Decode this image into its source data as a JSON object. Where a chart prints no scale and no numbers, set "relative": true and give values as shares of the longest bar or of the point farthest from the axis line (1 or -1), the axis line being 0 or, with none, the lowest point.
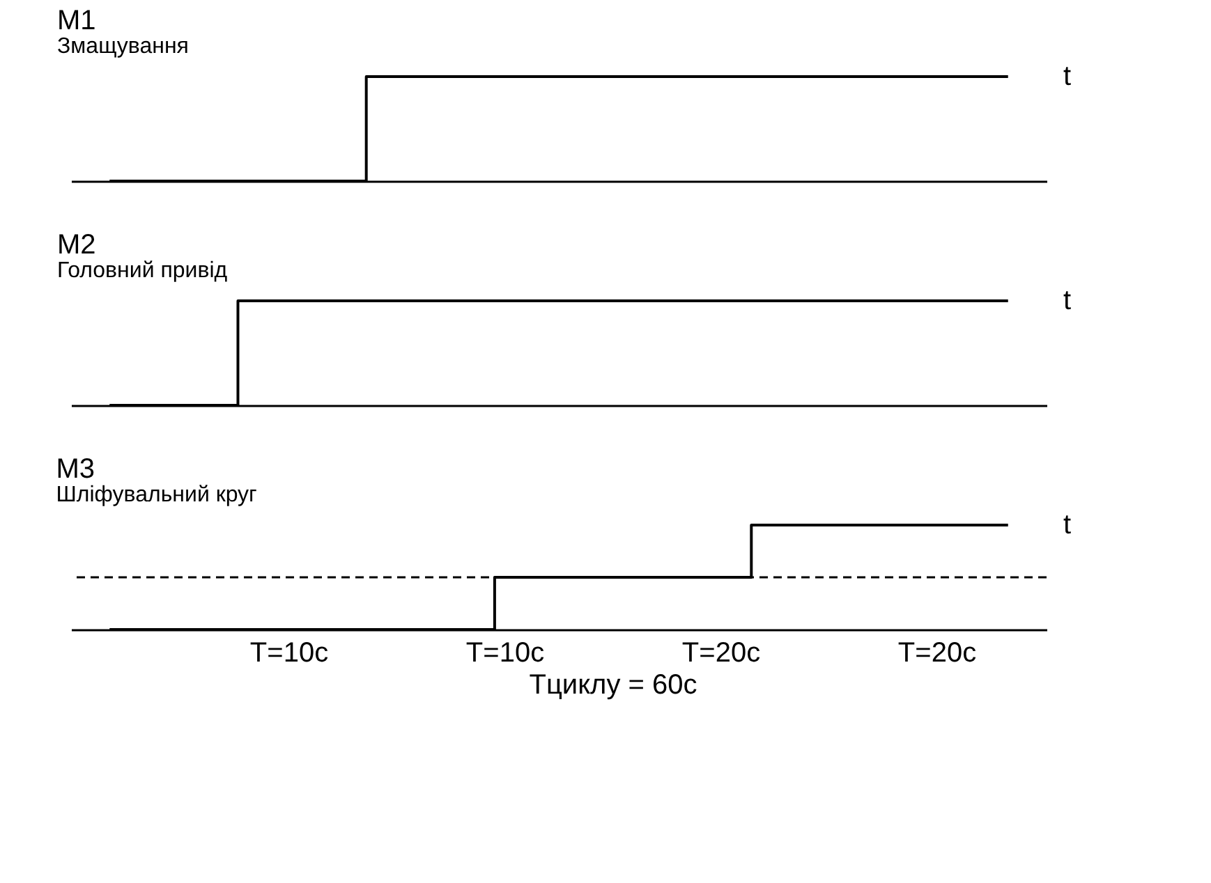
{
  "chart_data": [
    {
      "type": "step",
      "ylabel": "M1",
      "title": "Змащування",
      "xlabel": "t",
      "relative": true,
      "tick_labels": false,
      "categories": [
        null,
        null,
        null,
        null,
        null,
        null,
        null,
        null
      ],
      "series": [
        {
          "color": "#000000",
          "values": [
            0,
            0,
            1,
            1,
            1,
            1,
            1,
            1
          ]
        }
      ]
    },
    {
      "type": "step",
      "ylabel": "M2",
      "title": "Головний привід",
      "xlabel": "t",
      "relative": true,
      "tick_labels": false,
      "categories": [
        null,
        null,
        null,
        null,
        null,
        null,
        null,
        null
      ],
      "series": [
        {
          "color": "#000000",
          "values": [
            0,
            1,
            1,
            1,
            1,
            1,
            1,
            1
          ]
        }
      ]
    },
    {
      "type": "step",
      "ylabel": "M3",
      "title": "Шліфувальний круг",
      "xlabel": "t",
      "relative": true,
      "tick_labels": false,
      "categories": [
        null,
        null,
        null,
        null,
        null,
        null,
        null,
        null
      ],
      "series": [
        {
          "color": "#000000",
          "values": [
            0,
            0,
            0,
            0.5,
            0.5,
            1,
            1,
            1
          ]
        }
      ],
      "ref_lines": [
        {
          "axis": "y",
          "value": 0.5,
          "line_style": "dashed"
        }
      ],
      "annotations": [
        "T=10с",
        "T=10с",
        "T=20с",
        "T=20с",
        "Тциклу = 60с"
      ]
    }
  ]
}
